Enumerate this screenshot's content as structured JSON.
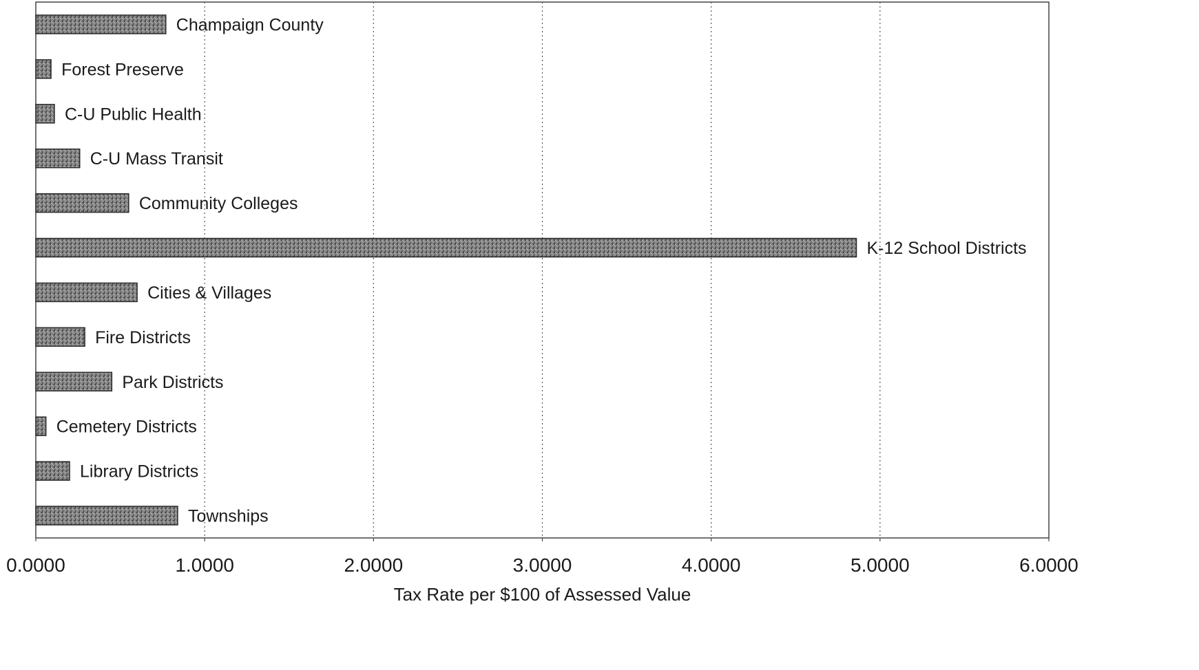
{
  "chart_data": {
    "type": "bar",
    "orientation": "horizontal",
    "title": "",
    "xlabel": "Tax Rate per $100 of Assessed Value",
    "ylabel": "",
    "xlim": [
      0,
      6
    ],
    "x_ticks": [
      "0.0000",
      "1.0000",
      "2.0000",
      "3.0000",
      "4.0000",
      "5.0000",
      "6.0000"
    ],
    "grid": "vertical dotted",
    "legend": "none",
    "bar_fill": "#7d7d7d",
    "bar_stroke": "#2a2a2a",
    "categories": [
      "Champaign County",
      "Forest Preserve",
      "C-U Public Health",
      "C-U Mass Transit",
      "Community Colleges",
      "K-12 School Districts",
      "Cities & Villages",
      "Fire Districts",
      "Park Districts",
      "Cemetery Districts",
      "Library Districts",
      "Townships"
    ],
    "values": [
      0.77,
      0.09,
      0.11,
      0.26,
      0.55,
      4.86,
      0.6,
      0.29,
      0.45,
      0.06,
      0.2,
      0.84
    ]
  }
}
